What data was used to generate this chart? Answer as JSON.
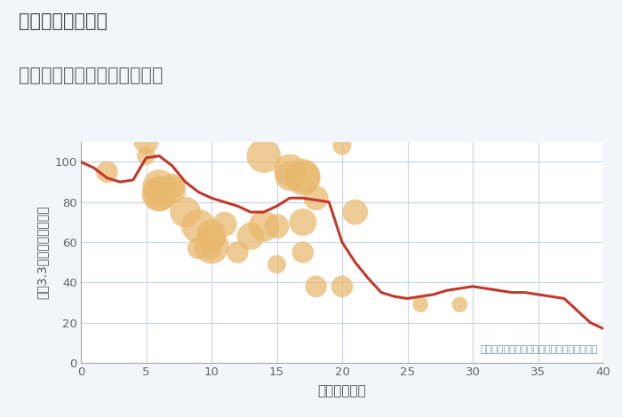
{
  "title_line1": "三重県津市青葉台",
  "title_line2": "築年数別中古マンション価格",
  "xlabel": "築年数（年）",
  "ylabel": "坪（3.3㎡）単価（万円）",
  "annotation": "円の大きさは、取引のあった物件面積を示す",
  "bg_color": "#f2f5f9",
  "plot_bg_color": "#ffffff",
  "grid_color": "#c5d5e8",
  "line_color": "#c0392b",
  "scatter_color": "#e8b86d",
  "scatter_alpha": 0.72,
  "xlim": [
    0,
    40
  ],
  "ylim": [
    0,
    110
  ],
  "xticks": [
    0,
    5,
    10,
    15,
    20,
    25,
    30,
    35,
    40
  ],
  "yticks": [
    0,
    20,
    40,
    60,
    80,
    100
  ],
  "line_x": [
    0,
    1,
    2,
    3,
    4,
    5,
    6,
    7,
    8,
    9,
    10,
    11,
    12,
    13,
    14,
    15,
    16,
    17,
    18,
    19,
    20,
    21,
    22,
    23,
    24,
    25,
    26,
    27,
    28,
    29,
    30,
    31,
    32,
    33,
    34,
    35,
    36,
    37,
    38,
    39,
    40
  ],
  "line_y": [
    100,
    97,
    92,
    90,
    91,
    102,
    103,
    98,
    90,
    85,
    82,
    80,
    78,
    75,
    75,
    78,
    82,
    82,
    81,
    80,
    60,
    50,
    42,
    35,
    33,
    32,
    33,
    34,
    36,
    37,
    38,
    37,
    36,
    35,
    35,
    34,
    33,
    32,
    26,
    20,
    17
  ],
  "scatter_x": [
    2,
    5,
    5,
    6,
    6,
    6,
    6,
    7,
    7,
    8,
    9,
    9,
    10,
    10,
    10,
    10,
    11,
    12,
    13,
    14,
    14,
    15,
    15,
    16,
    16,
    17,
    17,
    17,
    17,
    18,
    18,
    20,
    20,
    21,
    26,
    29
  ],
  "scatter_y": [
    95,
    110,
    103,
    85,
    88,
    84,
    83,
    86,
    88,
    75,
    68,
    57,
    58,
    64,
    62,
    56,
    69,
    55,
    63,
    103,
    68,
    49,
    68,
    93,
    96,
    70,
    92,
    93,
    55,
    82,
    38,
    108,
    38,
    75,
    29,
    29
  ],
  "scatter_size": [
    35,
    45,
    25,
    70,
    80,
    90,
    65,
    55,
    45,
    70,
    85,
    35,
    90,
    65,
    55,
    28,
    45,
    35,
    55,
    85,
    70,
    25,
    45,
    65,
    75,
    55,
    90,
    85,
    35,
    45,
    35,
    25,
    35,
    48,
    18,
    18
  ]
}
